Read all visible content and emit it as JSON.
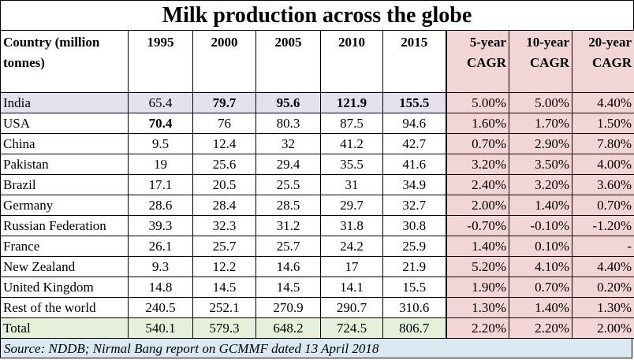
{
  "title": "Milk production across the globe",
  "headers": {
    "country": "Country (million tonnes)",
    "years": [
      "1995",
      "2000",
      "2005",
      "2010",
      "2015"
    ],
    "cagr": [
      "5-year CAGR",
      "10-year CAGR",
      "20-year CAGR"
    ]
  },
  "rows": [
    {
      "country": "India",
      "values": [
        "65.4",
        "79.7",
        "95.6",
        "121.9",
        "155.5"
      ],
      "cagr": [
        "5.00%",
        "5.00%",
        "4.40%"
      ]
    },
    {
      "country": "USA",
      "values": [
        "70.4",
        "76",
        "80.3",
        "87.5",
        "94.6"
      ],
      "cagr": [
        "1.60%",
        "1.70%",
        "1.50%"
      ]
    },
    {
      "country": "China",
      "values": [
        "9.5",
        "12.4",
        "32",
        "41.2",
        "42.7"
      ],
      "cagr": [
        "0.70%",
        "2.90%",
        "7.80%"
      ]
    },
    {
      "country": "Pakistan",
      "values": [
        "19",
        "25.6",
        "29.4",
        "35.5",
        "41.6"
      ],
      "cagr": [
        "3.20%",
        "3.50%",
        "4.00%"
      ]
    },
    {
      "country": "Brazil",
      "values": [
        "17.1",
        "20.5",
        "25.5",
        "31",
        "34.9"
      ],
      "cagr": [
        "2.40%",
        "3.20%",
        "3.60%"
      ]
    },
    {
      "country": "Germany",
      "values": [
        "28.6",
        "28.4",
        "28.5",
        "29.7",
        "32.7"
      ],
      "cagr": [
        "2.00%",
        "1.40%",
        "0.70%"
      ]
    },
    {
      "country": "Russian Federation",
      "values": [
        "39.3",
        "32.3",
        "31.2",
        "31.8",
        "30.8"
      ],
      "cagr": [
        "-0.70%",
        "-0.10%",
        "-1.20%"
      ]
    },
    {
      "country": "France",
      "values": [
        "26.1",
        "25.7",
        "25.7",
        "24.2",
        "25.9"
      ],
      "cagr": [
        "1.40%",
        "0.10%",
        "-"
      ]
    },
    {
      "country": "New Zealand",
      "values": [
        "9.3",
        "12.2",
        "14.6",
        "17",
        "21.9"
      ],
      "cagr": [
        "5.20%",
        "4.10%",
        "4.40%"
      ]
    },
    {
      "country": "United Kingdom",
      "values": [
        "14.8",
        "14.5",
        "14.5",
        "14.1",
        "15.5"
      ],
      "cagr": [
        "1.90%",
        "0.70%",
        "0.20%"
      ]
    },
    {
      "country": "Rest of the world",
      "values": [
        "240.5",
        "252.1",
        "270.9",
        "290.7",
        "310.6"
      ],
      "cagr": [
        "1.30%",
        "1.40%",
        "1.30%"
      ]
    },
    {
      "country": "Total",
      "values": [
        "540.1",
        "579.3",
        "648.2",
        "724.5",
        "806.7"
      ],
      "cagr": [
        "2.20%",
        "2.20%",
        "2.00%"
      ]
    }
  ],
  "source": "Source: NDDB; Nirmal Bang report on GCMMF dated 13 April 2018",
  "colors": {
    "cagr_bg": "#f2d5d5",
    "india_bg": "#e4e0ee",
    "total_bg": "#e6efd9",
    "source_bg": "#dbeaf2"
  }
}
